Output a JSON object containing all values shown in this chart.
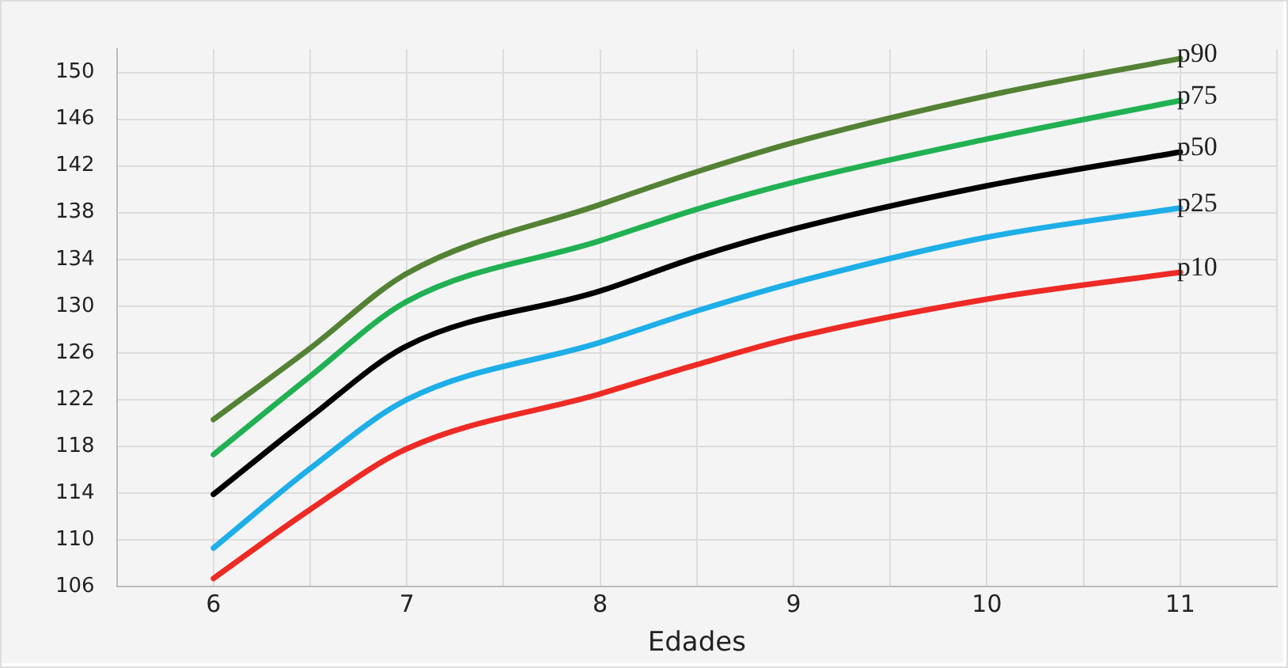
{
  "chart_data": {
    "type": "line",
    "xlabel": "Edades",
    "x": [
      6,
      6.5,
      7,
      8,
      8.5,
      9,
      10,
      11
    ],
    "series": [
      {
        "name": "p90",
        "color": "#548235",
        "values": [
          120.3,
          126.4,
          132.8,
          138.7,
          141.5,
          144.0,
          148.0,
          151.2
        ]
      },
      {
        "name": "p75",
        "color": "#21b153",
        "values": [
          117.3,
          124.0,
          130.4,
          135.6,
          138.3,
          140.6,
          144.3,
          147.6
        ]
      },
      {
        "name": "p50",
        "color": "#000000",
        "values": [
          113.9,
          120.5,
          126.6,
          131.3,
          134.2,
          136.6,
          140.3,
          143.2
        ]
      },
      {
        "name": "p25",
        "color": "#1eaee8",
        "values": [
          109.3,
          116.1,
          122.0,
          126.9,
          129.6,
          132.0,
          135.9,
          138.4
        ]
      },
      {
        "name": "p10",
        "color": "#ee2a24",
        "values": [
          106.7,
          112.6,
          117.8,
          122.5,
          125.0,
          127.3,
          130.6,
          132.9
        ]
      }
    ],
    "xlim": [
      5.5,
      11.5
    ],
    "xticks": [
      {
        "value": 5.5,
        "label": null
      },
      6,
      {
        "value": 6.5,
        "label": null
      },
      7,
      {
        "value": 7.5,
        "label": null
      },
      8,
      {
        "value": 8.5,
        "label": null
      },
      9,
      {
        "value": 9.5,
        "label": null
      },
      10,
      {
        "value": 10.5,
        "label": null
      },
      11,
      {
        "value": 11.5,
        "label": null
      }
    ],
    "ylim": [
      106,
      152
    ],
    "yticks": [
      106,
      110,
      114,
      118,
      122,
      126,
      130,
      134,
      138,
      142,
      146,
      150
    ],
    "grid": true,
    "legend": false,
    "marker": "none",
    "line_style": "solid"
  }
}
